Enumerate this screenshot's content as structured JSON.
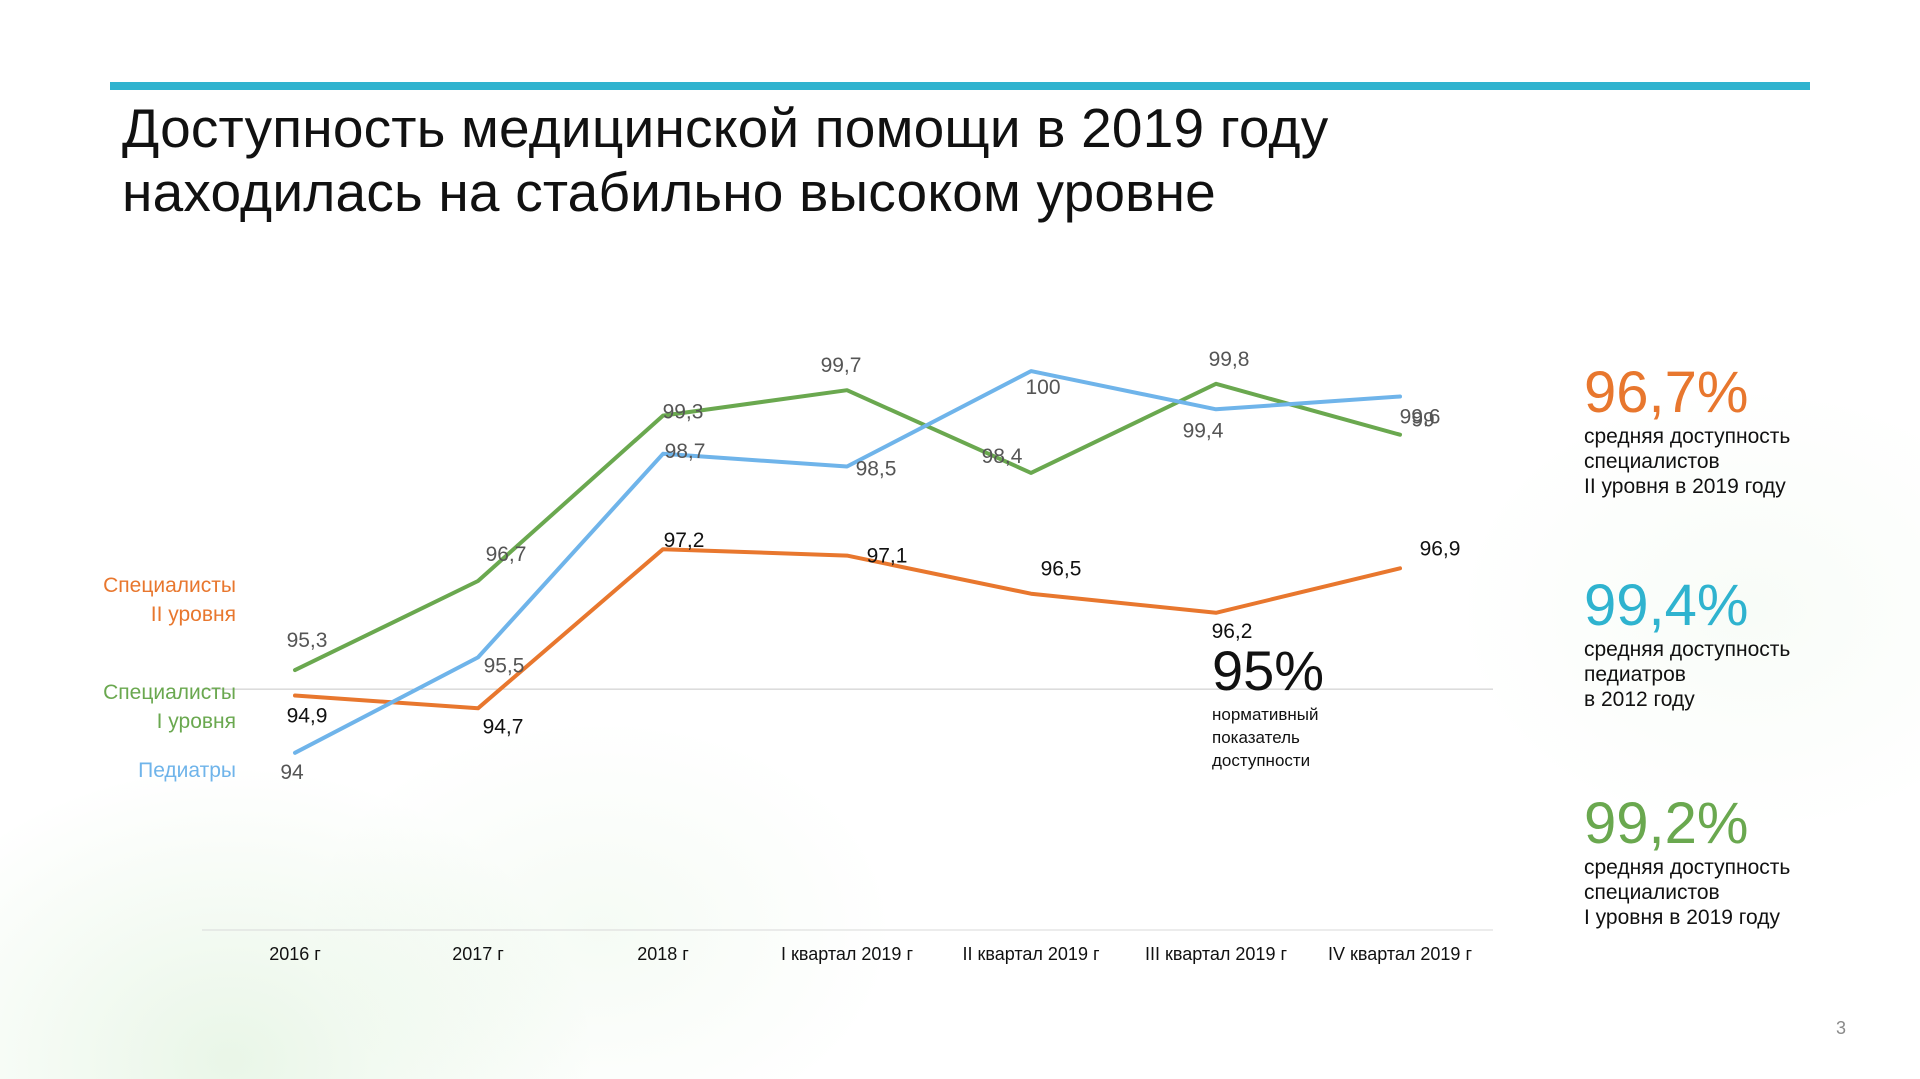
{
  "title": {
    "line1": "Доступность медицинской помощи в 2019 году",
    "line2": "находилась на стабильно высоком уровне"
  },
  "colors": {
    "accent_rule": "#2fb3cf",
    "specialists_2": "#e8772e",
    "specialists_1": "#6aa84f",
    "pediatrics": "#6fb4ea",
    "reference": "#c8c8c8"
  },
  "series_labels": {
    "specialists_2": [
      "Специалисты",
      "II уровня"
    ],
    "specialists_1": [
      "Специалисты",
      "I уровня"
    ],
    "pediatrics": [
      "Педиатры"
    ]
  },
  "chart_data": {
    "type": "line",
    "categories": [
      "2016 г",
      "2017 г",
      "2018 г",
      "I квартал 2019 г",
      "II квартал 2019 г",
      "III квартал 2019 г",
      "IV квартал 2019 г"
    ],
    "series": [
      {
        "key": "specialists_2",
        "name": "Специалисты II уровня",
        "values": [
          94.9,
          94.7,
          97.2,
          97.1,
          96.5,
          96.2,
          96.9
        ],
        "labels": [
          "94,9",
          "94,7",
          "97,2",
          "97,1",
          "96,5",
          "96,2",
          "96,9"
        ],
        "color": "#e8772e"
      },
      {
        "key": "specialists_1",
        "name": "Специалисты I уровня",
        "values": [
          95.3,
          96.7,
          99.3,
          99.7,
          98.4,
          99.8,
          99
        ],
        "labels": [
          "95,3",
          "96,7",
          "99,3",
          "99,7",
          "98,4",
          "99,8",
          "99"
        ],
        "color": "#6aa84f"
      },
      {
        "key": "pediatrics",
        "name": "Педиатры",
        "values": [
          94,
          95.5,
          98.7,
          98.5,
          100,
          99.4,
          99.6
        ],
        "labels": [
          "94",
          "95,5",
          "98,7",
          "98,5",
          "100",
          "99,4",
          "99,6"
        ],
        "color": "#6fb4ea"
      }
    ],
    "reference_line": {
      "value": 95,
      "label": "95%",
      "description": [
        "нормативный",
        "показатель",
        "доступности"
      ]
    },
    "ylim": [
      90.9,
      100.3
    ],
    "grid": false,
    "legend": "left"
  },
  "kpis": [
    {
      "value": "96,7%",
      "color": "#e8772e",
      "lines": [
        "средняя доступность",
        "специалистов",
        "II уровня в 2019 году"
      ]
    },
    {
      "value": "99,4%",
      "color": "#2fb3cf",
      "lines": [
        "средняя доступность",
        "педиатров",
        "в 2012 году"
      ]
    },
    {
      "value": "99,2%",
      "color": "#6aa84f",
      "lines": [
        "средняя доступность",
        "специалистов",
        "I уровня в 2019 году"
      ]
    }
  ],
  "page_number": "3"
}
